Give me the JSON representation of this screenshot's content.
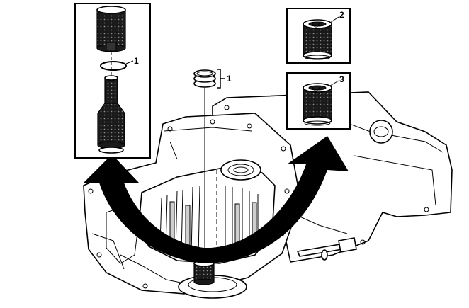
{
  "callouts": {
    "left_inset_item": "1",
    "center_item": "1",
    "upper_right_inset_item": "2",
    "lower_right_inset_item": "3"
  },
  "colors": {
    "outline": "#000000",
    "background": "#ffffff",
    "arrow_fill": "#000000",
    "mesh": "#1a1a1a"
  },
  "icons": {
    "large_curved_arrow": "curved-arrow-icon",
    "seal_ring": "o-ring-icon"
  }
}
